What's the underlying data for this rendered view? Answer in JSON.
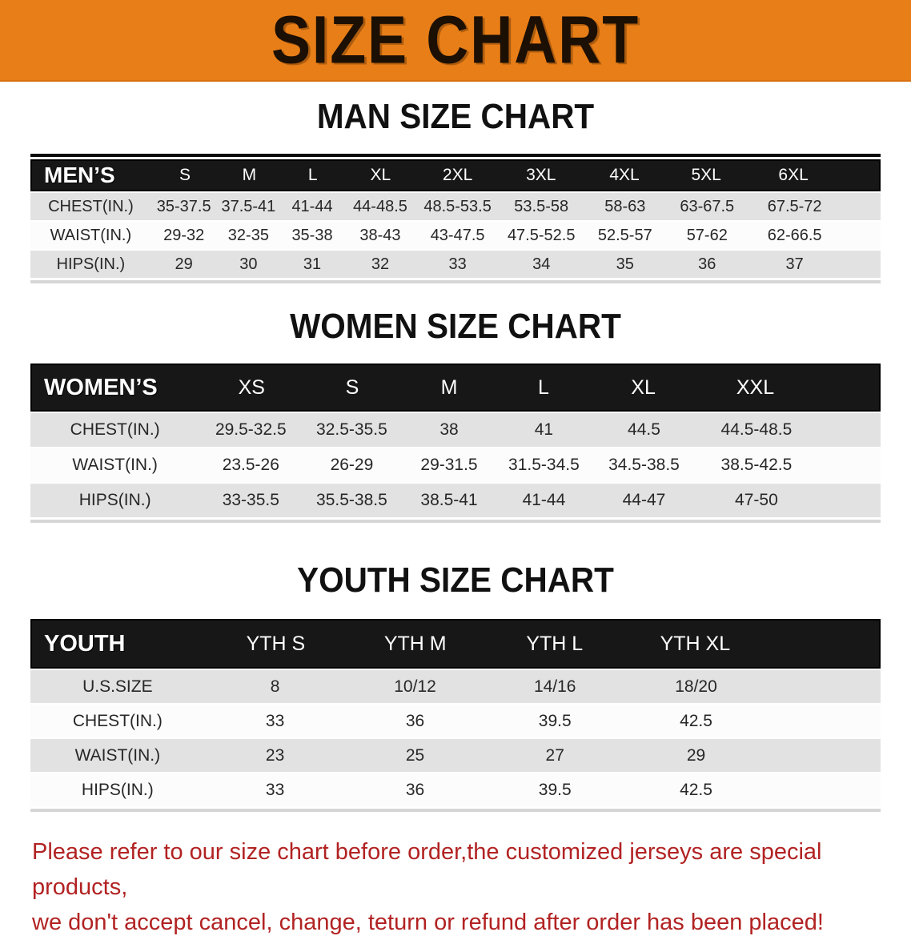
{
  "banner": {
    "title": "SIZE CHART",
    "bg_color": "#E87E17"
  },
  "sections": [
    {
      "heading": "MAN SIZE CHART",
      "table": {
        "label": "MEN’S",
        "columns": [
          "S",
          "M",
          "L",
          "XL",
          "2XL",
          "3XL",
          "4XL",
          "5XL",
          "6XL"
        ],
        "rows": [
          {
            "label": "CHEST(IN.)",
            "values": [
              "35-37.5",
              "37.5-41",
              "41-44",
              "44-48.5",
              "48.5-53.5",
              "53.5-58",
              "58-63",
              "63-67.5",
              "67.5-72"
            ]
          },
          {
            "label": "WAIST(IN.)",
            "values": [
              "29-32",
              "32-35",
              "35-38",
              "38-43",
              "43-47.5",
              "47.5-52.5",
              "52.5-57",
              "57-62",
              "62-66.5"
            ]
          },
          {
            "label": "HIPS(IN.)",
            "values": [
              "29",
              "30",
              "31",
              "32",
              "33",
              "34",
              "35",
              "36",
              "37"
            ]
          }
        ]
      }
    },
    {
      "heading": "WOMEN SIZE CHART",
      "table": {
        "label": "WOMEN’S",
        "columns": [
          "XS",
          "S",
          "M",
          "L",
          "XL",
          "XXL"
        ],
        "rows": [
          {
            "label": "CHEST(IN.)",
            "values": [
              "29.5-32.5",
              "32.5-35.5",
              "38",
              "41",
              "44.5",
              "44.5-48.5"
            ]
          },
          {
            "label": "WAIST(IN.)",
            "values": [
              "23.5-26",
              "26-29",
              "29-31.5",
              "31.5-34.5",
              "34.5-38.5",
              "38.5-42.5"
            ]
          },
          {
            "label": "HIPS(IN.)",
            "values": [
              "33-35.5",
              "35.5-38.5",
              "38.5-41",
              "41-44",
              "44-47",
              "47-50"
            ]
          }
        ]
      }
    },
    {
      "heading": "YOUTH SIZE CHART",
      "table": {
        "label": "YOUTH",
        "columns": [
          "YTH S",
          "YTH M",
          "YTH L",
          "YTH XL"
        ],
        "rows": [
          {
            "label": "U.S.SIZE",
            "values": [
              "8",
              "10/12",
              "14/16",
              "18/20"
            ]
          },
          {
            "label": "CHEST(IN.)",
            "values": [
              "33",
              "36",
              "39.5",
              "42.5"
            ]
          },
          {
            "label": "WAIST(IN.)",
            "values": [
              "23",
              "25",
              "27",
              "29"
            ]
          },
          {
            "label": "HIPS(IN.)",
            "values": [
              "33",
              "36",
              "39.5",
              "42.5"
            ]
          }
        ]
      }
    }
  ],
  "footer": {
    "color": "#B22222",
    "line1": "Please refer to our size chart before order,the customized jerseys are special products,",
    "line2": "we don't accept cancel, change, teturn or refund after order has been placed!"
  }
}
